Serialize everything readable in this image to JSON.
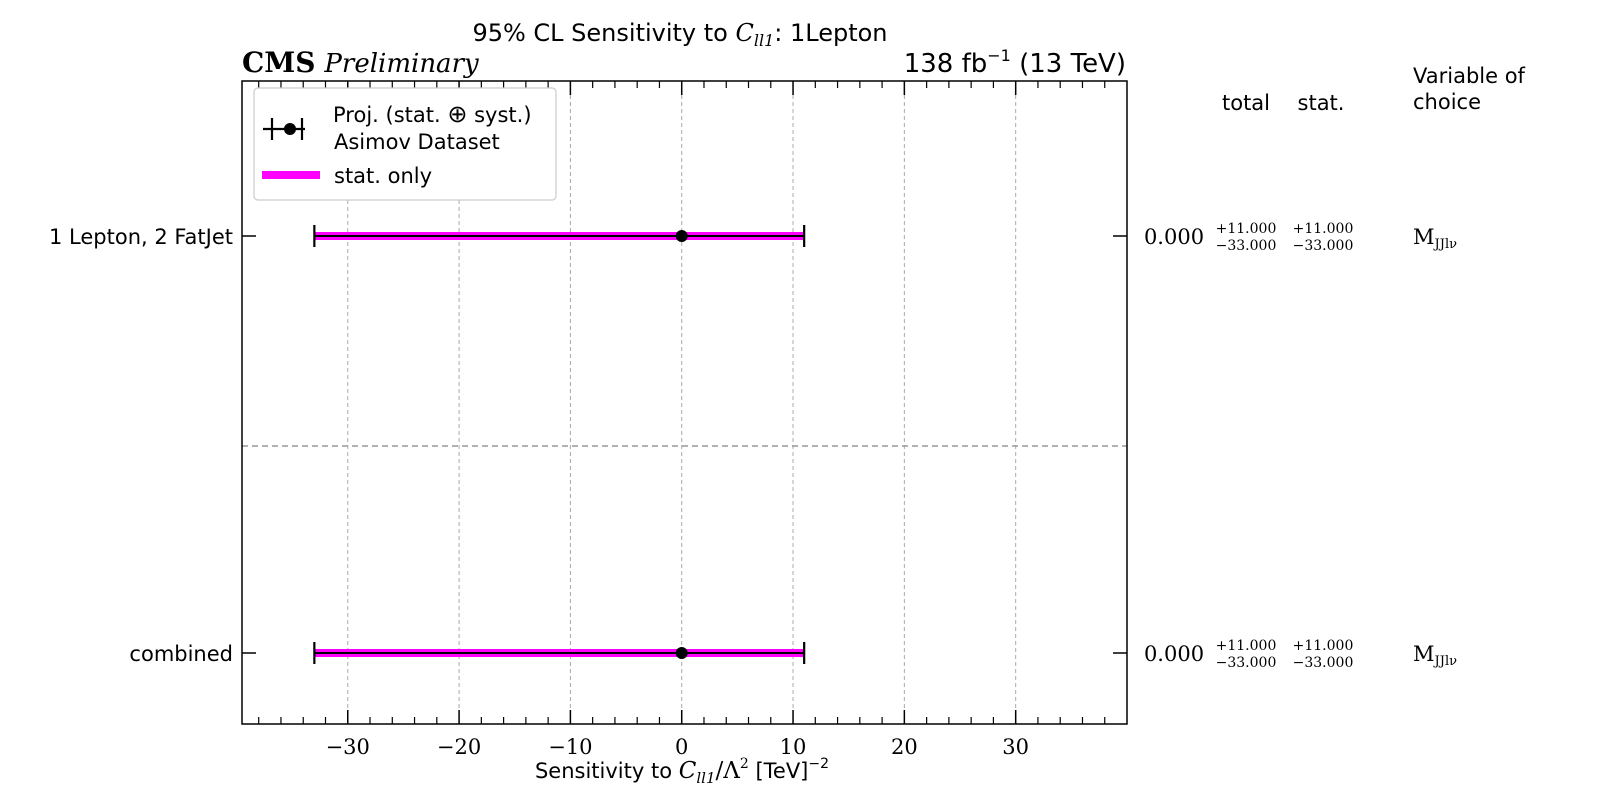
{
  "chart_data": {
    "type": "errorbar",
    "title_prefix": "95% CL Sensitivity to ",
    "title_var": "C",
    "title_sub": "ll1",
    "title_suffix": ": 1Lepton",
    "experiment": "CMS",
    "status": "Preliminary",
    "lumi": "138 fb",
    "lumi_exp": "−1",
    "energy": " (13 TeV)",
    "xlabel_prefix": "Sensitivity to ",
    "xlabel_var": "C",
    "xlabel_sub": "ll1",
    "xlabel_mid": "/Λ",
    "xlabel_sup": "2",
    "xlabel_unit": " [TeV]",
    "xlabel_unit_sup": "−2",
    "xlim": [
      -39.5,
      40
    ],
    "xticks_major": [
      -30,
      -20,
      -10,
      0,
      10,
      20,
      30
    ],
    "xtick_labels": [
      "−30",
      "−20",
      "−10",
      "0",
      "10",
      "20",
      "30"
    ],
    "grid": true,
    "legend_position": "top-left",
    "legend": {
      "proj_line1": "Proj. (stat. ",
      "proj_symbol": "⊕",
      "proj_line1_end": " syst.)",
      "proj_line2": "Asimov Dataset",
      "stat_only": "stat. only"
    },
    "columns": {
      "total": "total",
      "stat": "stat.",
      "variable_line1": "Variable of",
      "variable_line2": "choice"
    },
    "rows": [
      {
        "label": "1 Lepton, 2 FatJet",
        "central": 0.0,
        "total_lo": -33.0,
        "total_hi": 11.0,
        "stat_lo": -33.0,
        "stat_hi": 11.0,
        "value_text": "0.000",
        "total_up": "+11.000",
        "total_down": "−33.000",
        "stat_up": "+11.000",
        "stat_down": "−33.000",
        "var_main": "M",
        "var_sub": "JJlν"
      },
      {
        "label": "combined",
        "central": 0.0,
        "total_lo": -33.0,
        "total_hi": 11.0,
        "stat_lo": -33.0,
        "stat_hi": 11.0,
        "value_text": "0.000",
        "total_up": "+11.000",
        "total_down": "−33.000",
        "stat_up": "+11.000",
        "stat_down": "−33.000",
        "var_main": "M",
        "var_sub": "JJlν"
      }
    ],
    "colors": {
      "stat_band": "#ff00ff",
      "marker": "#000000",
      "grid": "#aaaaaa",
      "separator": "#999999"
    }
  }
}
